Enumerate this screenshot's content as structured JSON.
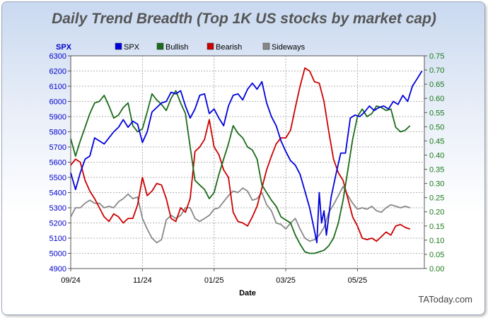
{
  "chart_data": {
    "type": "line",
    "title": "Daily Trend Breadth (Top 1K US stocks by market cap)",
    "xlabel": "Date",
    "ylabel_left": "SPX",
    "ylim_left": [
      4900,
      6300
    ],
    "yticks_left": [
      "6300",
      "6200",
      "6100",
      "6000",
      "5900",
      "5800",
      "5700",
      "5600",
      "5500",
      "5400",
      "5300",
      "5200",
      "5100",
      "5000",
      "4900"
    ],
    "ylim_right": [
      0.0,
      0.75
    ],
    "yticks_right": [
      "0.75",
      "0.70",
      "0.65",
      "0.60",
      "0.55",
      "0.50",
      "0.45",
      "0.40",
      "0.35",
      "0.30",
      "0.25",
      "0.20",
      "0.15",
      "0.10",
      "0.05",
      "0.00"
    ],
    "x_tick_labels": [
      "09/24",
      "11/24",
      "01/25",
      "03/25",
      "05/25"
    ],
    "x_tick_positions": [
      0,
      60,
      120,
      180,
      240
    ],
    "x_range": [
      0,
      296
    ],
    "grid": true,
    "legend_placement": "top",
    "credit": "TAToday.com",
    "colors": {
      "spx": "#0000dd",
      "bullish": "#1a6b1a",
      "bearish": "#cc0000",
      "sideways": "#888888",
      "left_axis": "#0000cc",
      "right_axis": "#1a7a1a"
    },
    "series": [
      {
        "name": "SPX",
        "axis": "left",
        "color": "#0000dd",
        "points": [
          [
            0,
            5530
          ],
          [
            4,
            5420
          ],
          [
            8,
            5530
          ],
          [
            12,
            5620
          ],
          [
            16,
            5640
          ],
          [
            20,
            5760
          ],
          [
            24,
            5740
          ],
          [
            28,
            5720
          ],
          [
            32,
            5760
          ],
          [
            36,
            5800
          ],
          [
            40,
            5830
          ],
          [
            44,
            5880
          ],
          [
            48,
            5830
          ],
          [
            52,
            5870
          ],
          [
            56,
            5850
          ],
          [
            60,
            5730
          ],
          [
            64,
            5800
          ],
          [
            68,
            5930
          ],
          [
            72,
            5960
          ],
          [
            76,
            5990
          ],
          [
            80,
            6000
          ],
          [
            84,
            6060
          ],
          [
            88,
            6050
          ],
          [
            92,
            6070
          ],
          [
            96,
            5970
          ],
          [
            100,
            5890
          ],
          [
            104,
            5950
          ],
          [
            108,
            6040
          ],
          [
            112,
            6050
          ],
          [
            116,
            5920
          ],
          [
            120,
            5950
          ],
          [
            124,
            5890
          ],
          [
            128,
            5840
          ],
          [
            132,
            5970
          ],
          [
            136,
            6040
          ],
          [
            140,
            6050
          ],
          [
            144,
            6010
          ],
          [
            148,
            6080
          ],
          [
            152,
            6120
          ],
          [
            156,
            6080
          ],
          [
            160,
            6130
          ],
          [
            164,
            5990
          ],
          [
            168,
            5900
          ],
          [
            172,
            5840
          ],
          [
            176,
            5740
          ],
          [
            180,
            5670
          ],
          [
            184,
            5610
          ],
          [
            188,
            5580
          ],
          [
            192,
            5520
          ],
          [
            196,
            5410
          ],
          [
            200,
            5300
          ],
          [
            204,
            5150
          ],
          [
            206,
            5070
          ],
          [
            208,
            5400
          ],
          [
            210,
            5200
          ],
          [
            212,
            5280
          ],
          [
            214,
            5120
          ],
          [
            218,
            5370
          ],
          [
            222,
            5520
          ],
          [
            226,
            5660
          ],
          [
            230,
            5660
          ],
          [
            234,
            5890
          ],
          [
            238,
            5910
          ],
          [
            242,
            5900
          ],
          [
            246,
            5930
          ],
          [
            250,
            5970
          ],
          [
            254,
            5940
          ],
          [
            258,
            5960
          ],
          [
            262,
            5970
          ],
          [
            266,
            5950
          ],
          [
            270,
            6000
          ],
          [
            274,
            5980
          ],
          [
            278,
            6040
          ],
          [
            282,
            6000
          ],
          [
            286,
            6100
          ],
          [
            290,
            6150
          ],
          [
            294,
            6200
          ]
        ]
      },
      {
        "name": "Bullish",
        "axis": "left",
        "color": "#1a6b1a",
        "points": [
          [
            0,
            5755
          ],
          [
            4,
            5640
          ],
          [
            8,
            5740
          ],
          [
            12,
            5830
          ],
          [
            16,
            5920
          ],
          [
            20,
            5990
          ],
          [
            24,
            6000
          ],
          [
            28,
            6040
          ],
          [
            32,
            5970
          ],
          [
            36,
            5890
          ],
          [
            40,
            5910
          ],
          [
            44,
            5960
          ],
          [
            48,
            5990
          ],
          [
            52,
            5840
          ],
          [
            56,
            5800
          ],
          [
            60,
            5820
          ],
          [
            64,
            5930
          ],
          [
            68,
            6050
          ],
          [
            72,
            6010
          ],
          [
            76,
            5980
          ],
          [
            80,
            5940
          ],
          [
            84,
            6020
          ],
          [
            88,
            6070
          ],
          [
            92,
            5990
          ],
          [
            96,
            5920
          ],
          [
            100,
            5700
          ],
          [
            104,
            5480
          ],
          [
            108,
            5450
          ],
          [
            112,
            5420
          ],
          [
            116,
            5360
          ],
          [
            120,
            5400
          ],
          [
            124,
            5520
          ],
          [
            128,
            5620
          ],
          [
            132,
            5720
          ],
          [
            136,
            5840
          ],
          [
            140,
            5790
          ],
          [
            144,
            5760
          ],
          [
            148,
            5700
          ],
          [
            152,
            5680
          ],
          [
            156,
            5620
          ],
          [
            160,
            5450
          ],
          [
            164,
            5400
          ],
          [
            168,
            5350
          ],
          [
            172,
            5310
          ],
          [
            176,
            5240
          ],
          [
            180,
            5220
          ],
          [
            184,
            5200
          ],
          [
            188,
            5120
          ],
          [
            192,
            5060
          ],
          [
            196,
            5010
          ],
          [
            200,
            5000
          ],
          [
            204,
            5000
          ],
          [
            208,
            5010
          ],
          [
            212,
            5020
          ],
          [
            216,
            5050
          ],
          [
            220,
            5100
          ],
          [
            224,
            5200
          ],
          [
            228,
            5350
          ],
          [
            232,
            5550
          ],
          [
            236,
            5750
          ],
          [
            240,
            5900
          ],
          [
            244,
            5950
          ],
          [
            248,
            5900
          ],
          [
            252,
            5920
          ],
          [
            256,
            5970
          ],
          [
            260,
            5960
          ],
          [
            264,
            5940
          ],
          [
            268,
            5950
          ],
          [
            272,
            5830
          ],
          [
            276,
            5800
          ],
          [
            280,
            5810
          ],
          [
            284,
            5840
          ]
        ]
      },
      {
        "name": "Bearish",
        "axis": "left",
        "color": "#cc0000",
        "points": [
          [
            0,
            5580
          ],
          [
            4,
            5620
          ],
          [
            8,
            5600
          ],
          [
            12,
            5480
          ],
          [
            16,
            5410
          ],
          [
            20,
            5360
          ],
          [
            24,
            5300
          ],
          [
            28,
            5240
          ],
          [
            32,
            5210
          ],
          [
            36,
            5260
          ],
          [
            40,
            5240
          ],
          [
            44,
            5200
          ],
          [
            48,
            5230
          ],
          [
            52,
            5230
          ],
          [
            56,
            5320
          ],
          [
            60,
            5500
          ],
          [
            64,
            5380
          ],
          [
            68,
            5410
          ],
          [
            72,
            5460
          ],
          [
            76,
            5450
          ],
          [
            80,
            5360
          ],
          [
            84,
            5230
          ],
          [
            88,
            5210
          ],
          [
            92,
            5300
          ],
          [
            96,
            5270
          ],
          [
            100,
            5360
          ],
          [
            104,
            5670
          ],
          [
            108,
            5700
          ],
          [
            112,
            5750
          ],
          [
            116,
            5880
          ],
          [
            120,
            5700
          ],
          [
            124,
            5650
          ],
          [
            128,
            5550
          ],
          [
            132,
            5500
          ],
          [
            136,
            5270
          ],
          [
            140,
            5210
          ],
          [
            144,
            5200
          ],
          [
            148,
            5180
          ],
          [
            152,
            5240
          ],
          [
            156,
            5310
          ],
          [
            160,
            5430
          ],
          [
            164,
            5550
          ],
          [
            168,
            5640
          ],
          [
            172,
            5720
          ],
          [
            176,
            5760
          ],
          [
            180,
            5760
          ],
          [
            184,
            5810
          ],
          [
            188,
            5960
          ],
          [
            192,
            6100
          ],
          [
            196,
            6220
          ],
          [
            200,
            6200
          ],
          [
            204,
            6130
          ],
          [
            208,
            6120
          ],
          [
            212,
            6000
          ],
          [
            216,
            5800
          ],
          [
            220,
            5620
          ],
          [
            224,
            5530
          ],
          [
            228,
            5480
          ],
          [
            232,
            5360
          ],
          [
            236,
            5240
          ],
          [
            240,
            5180
          ],
          [
            244,
            5100
          ],
          [
            248,
            5090
          ],
          [
            252,
            5100
          ],
          [
            256,
            5080
          ],
          [
            260,
            5110
          ],
          [
            264,
            5140
          ],
          [
            268,
            5120
          ],
          [
            272,
            5180
          ],
          [
            276,
            5190
          ],
          [
            280,
            5170
          ],
          [
            284,
            5160
          ]
        ]
      },
      {
        "name": "Sideways",
        "axis": "left",
        "color": "#888888",
        "points": [
          [
            0,
            5240
          ],
          [
            4,
            5300
          ],
          [
            8,
            5300
          ],
          [
            12,
            5330
          ],
          [
            16,
            5350
          ],
          [
            20,
            5330
          ],
          [
            24,
            5330
          ],
          [
            28,
            5300
          ],
          [
            32,
            5310
          ],
          [
            36,
            5300
          ],
          [
            40,
            5340
          ],
          [
            44,
            5360
          ],
          [
            48,
            5390
          ],
          [
            52,
            5360
          ],
          [
            56,
            5370
          ],
          [
            60,
            5230
          ],
          [
            64,
            5160
          ],
          [
            68,
            5100
          ],
          [
            72,
            5070
          ],
          [
            76,
            5090
          ],
          [
            80,
            5220
          ],
          [
            84,
            5250
          ],
          [
            88,
            5230
          ],
          [
            92,
            5250
          ],
          [
            96,
            5300
          ],
          [
            100,
            5300
          ],
          [
            104,
            5230
          ],
          [
            108,
            5210
          ],
          [
            112,
            5230
          ],
          [
            116,
            5250
          ],
          [
            120,
            5290
          ],
          [
            124,
            5300
          ],
          [
            128,
            5340
          ],
          [
            132,
            5380
          ],
          [
            136,
            5410
          ],
          [
            140,
            5400
          ],
          [
            144,
            5430
          ],
          [
            148,
            5410
          ],
          [
            152,
            5350
          ],
          [
            156,
            5360
          ],
          [
            160,
            5400
          ],
          [
            164,
            5320
          ],
          [
            168,
            5280
          ],
          [
            172,
            5200
          ],
          [
            176,
            5190
          ],
          [
            180,
            5160
          ],
          [
            184,
            5200
          ],
          [
            188,
            5230
          ],
          [
            192,
            5160
          ],
          [
            196,
            5100
          ],
          [
            200,
            5080
          ],
          [
            204,
            5090
          ],
          [
            208,
            5120
          ],
          [
            212,
            5170
          ],
          [
            216,
            5270
          ],
          [
            220,
            5320
          ],
          [
            224,
            5380
          ],
          [
            228,
            5440
          ],
          [
            232,
            5380
          ],
          [
            236,
            5330
          ],
          [
            240,
            5290
          ],
          [
            244,
            5300
          ],
          [
            248,
            5290
          ],
          [
            252,
            5310
          ],
          [
            256,
            5280
          ],
          [
            260,
            5270
          ],
          [
            264,
            5300
          ],
          [
            268,
            5320
          ],
          [
            272,
            5310
          ],
          [
            276,
            5300
          ],
          [
            280,
            5310
          ],
          [
            284,
            5300
          ]
        ]
      }
    ]
  }
}
